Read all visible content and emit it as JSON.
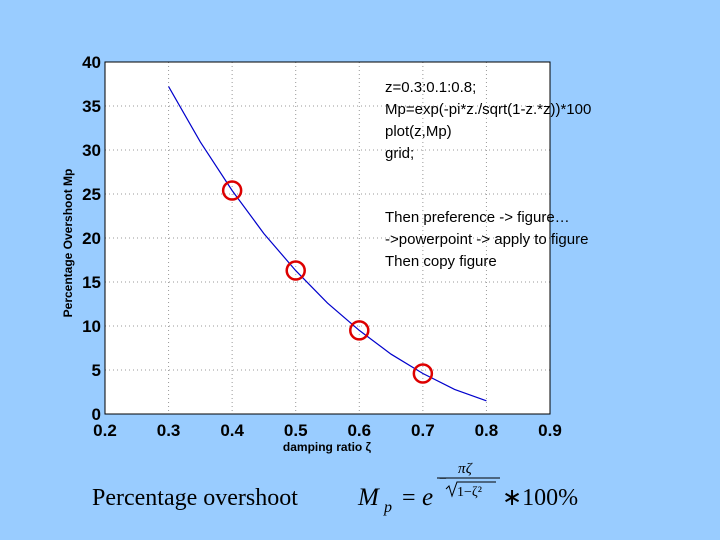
{
  "chart_data": {
    "type": "line",
    "xlabel": "damping ratio ζ",
    "ylabel": "Percentage Overshoot Mp",
    "xlim": [
      0.2,
      0.9
    ],
    "ylim": [
      0,
      40
    ],
    "x_ticks": [
      "0.2",
      "0.3",
      "0.4",
      "0.5",
      "0.6",
      "0.7",
      "0.8",
      "0.9"
    ],
    "y_ticks": [
      "0",
      "5",
      "10",
      "15",
      "20",
      "25",
      "30",
      "35",
      "40"
    ],
    "grid": true,
    "series": [
      {
        "color": "#0000cc",
        "x": [
          0.3,
          0.35,
          0.4,
          0.45,
          0.5,
          0.55,
          0.6,
          0.65,
          0.7,
          0.75,
          0.8
        ],
        "y": [
          37.2,
          30.9,
          25.4,
          20.5,
          16.3,
          12.6,
          9.5,
          6.8,
          4.6,
          2.8,
          1.5
        ]
      }
    ],
    "markers": {
      "color": "#dd0000",
      "x": [
        0.4,
        0.5,
        0.6,
        0.7
      ],
      "y": [
        25.4,
        16.3,
        9.5,
        4.6
      ]
    }
  },
  "annotations": {
    "code_lines": [
      "z=0.3:0.1:0.8;",
      "Mp=exp(-pi*z./sqrt(1-z.*z))*100",
      "plot(z,Mp)",
      "grid;"
    ],
    "note_lines": [
      "Then preference -> figure…",
      "->powerpoint -> apply to figure",
      "Then copy figure"
    ]
  },
  "formula": {
    "title": "Percentage overshoot",
    "lhs_M": "M",
    "lhs_sub": "p",
    "equals": "=",
    "base": "e",
    "exp_numerator": "πζ",
    "exp_denominator": "1−ζ²",
    "multiply": "∗100%"
  }
}
